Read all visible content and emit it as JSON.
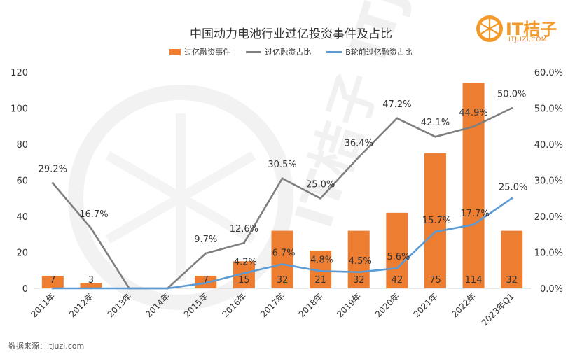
{
  "logo": {
    "brand": "IT桔子",
    "sub": "ITJUZI.COM",
    "watermark": "IT桔子  ITJUZI.COM"
  },
  "source": "数据来源：itjuzi.com",
  "colors": {
    "bar": "#ed7d31",
    "line1": "#7f7f7f",
    "line2": "#5b9bd5",
    "logo": "#f39a2b"
  },
  "chart_data": {
    "type": "bar",
    "title": "中国动力电池行业过亿投资事件及占比",
    "categories": [
      "2011年",
      "2012年",
      "2013年",
      "2014年",
      "2015年",
      "2016年",
      "2017年",
      "2018年",
      "2019年",
      "2020年",
      "2021年",
      "2022年",
      "2023年Q1"
    ],
    "series": [
      {
        "name": "过亿融资事件",
        "type": "bar",
        "axis": "left",
        "values": [
          7,
          3,
          0,
          0,
          7,
          15,
          32,
          21,
          32,
          42,
          75,
          114,
          32
        ],
        "labels": [
          "7",
          "3",
          "",
          "",
          "7",
          "15",
          "32",
          "21",
          "32",
          "42",
          "75",
          "114",
          "32"
        ]
      },
      {
        "name": "过亿融资占比",
        "type": "line",
        "axis": "right",
        "values": [
          29.2,
          16.7,
          0,
          0,
          9.7,
          12.6,
          30.5,
          25.0,
          36.4,
          47.2,
          42.1,
          44.9,
          50.0
        ],
        "labels": [
          "29.2%",
          "16.7%",
          "",
          "",
          "9.7%",
          "12.6%",
          "30.5%",
          "25.0%",
          "36.4%",
          "47.2%",
          "42.1%",
          "44.9%",
          "50.0%"
        ]
      },
      {
        "name": "B轮前过亿融资占比",
        "type": "line",
        "axis": "right",
        "values": [
          0,
          0,
          0,
          0,
          1.5,
          4.2,
          6.7,
          4.8,
          4.5,
          5.6,
          15.7,
          17.7,
          25.0
        ],
        "labels": [
          "",
          "",
          "",
          "",
          "",
          "4.2%",
          "6.7%",
          "4.8%",
          "4.5%",
          "5.6%",
          "15.7%",
          "17.7%",
          "25.0%"
        ]
      }
    ],
    "y_left": {
      "min": 0,
      "max": 120,
      "ticks": [
        "0",
        "20",
        "40",
        "60",
        "80",
        "100",
        "120"
      ]
    },
    "y_right": {
      "min": 0,
      "max": 60,
      "ticks": [
        "0.0%",
        "10.0%",
        "20.0%",
        "30.0%",
        "40.0%",
        "50.0%",
        "60.0%"
      ]
    },
    "grid": false,
    "legend_position": "top"
  }
}
